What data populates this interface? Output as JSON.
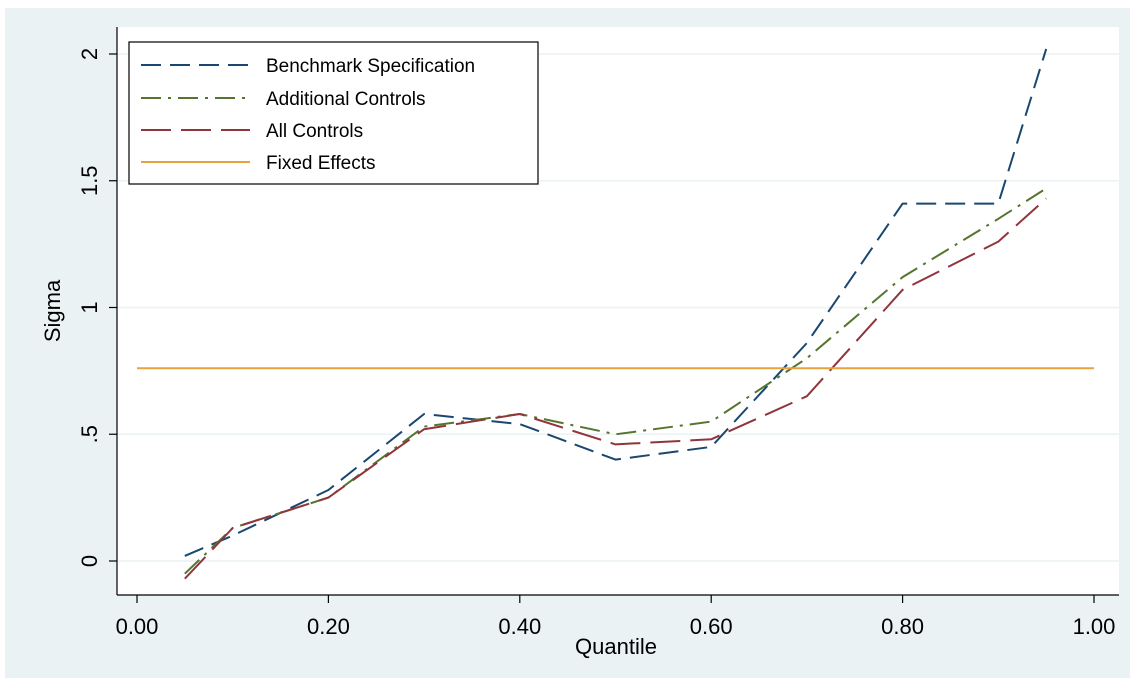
{
  "chart_data": {
    "type": "line",
    "title": "",
    "xlabel": "Quantile",
    "ylabel": "Sigma",
    "xlim": [
      0,
      1
    ],
    "ylim": [
      -0.12,
      2.07
    ],
    "xticks": [
      0,
      0.2,
      0.4,
      0.6,
      0.8,
      1.0
    ],
    "xtick_labels": [
      "0.00",
      "0.20",
      "0.40",
      "0.60",
      "0.80",
      "1.00"
    ],
    "yticks": [
      0,
      0.5,
      1,
      1.5,
      2
    ],
    "ytick_labels": [
      "0",
      ".5",
      "1",
      "1.5",
      "2"
    ],
    "grid": true,
    "legend_position": "top-left",
    "series": [
      {
        "name": "Benchmark Specification",
        "color": "#1a476f",
        "style": "dashed",
        "x": [
          0.05,
          0.1,
          0.2,
          0.3,
          0.4,
          0.5,
          0.6,
          0.7,
          0.8,
          0.9,
          0.95
        ],
        "y": [
          0.02,
          0.1,
          0.28,
          0.58,
          0.54,
          0.4,
          0.45,
          0.86,
          1.41,
          1.41,
          2.02
        ]
      },
      {
        "name": "Additional Controls",
        "color": "#55752f",
        "style": "dashdot",
        "x": [
          0.05,
          0.1,
          0.2,
          0.3,
          0.4,
          0.5,
          0.6,
          0.7,
          0.8,
          0.9,
          0.95
        ],
        "y": [
          -0.05,
          0.13,
          0.25,
          0.53,
          0.58,
          0.5,
          0.55,
          0.8,
          1.12,
          1.35,
          1.47
        ]
      },
      {
        "name": "All Controls",
        "color": "#90353b",
        "style": "longdash",
        "x": [
          0.05,
          0.1,
          0.2,
          0.3,
          0.4,
          0.5,
          0.6,
          0.7,
          0.8,
          0.9,
          0.95
        ],
        "y": [
          -0.07,
          0.13,
          0.25,
          0.52,
          0.58,
          0.46,
          0.48,
          0.65,
          1.07,
          1.26,
          1.43
        ]
      },
      {
        "name": "Fixed Effects",
        "color": "#e8a33d",
        "style": "solid",
        "x": [
          0.0,
          1.0
        ],
        "y": [
          0.76,
          0.76
        ]
      }
    ]
  }
}
